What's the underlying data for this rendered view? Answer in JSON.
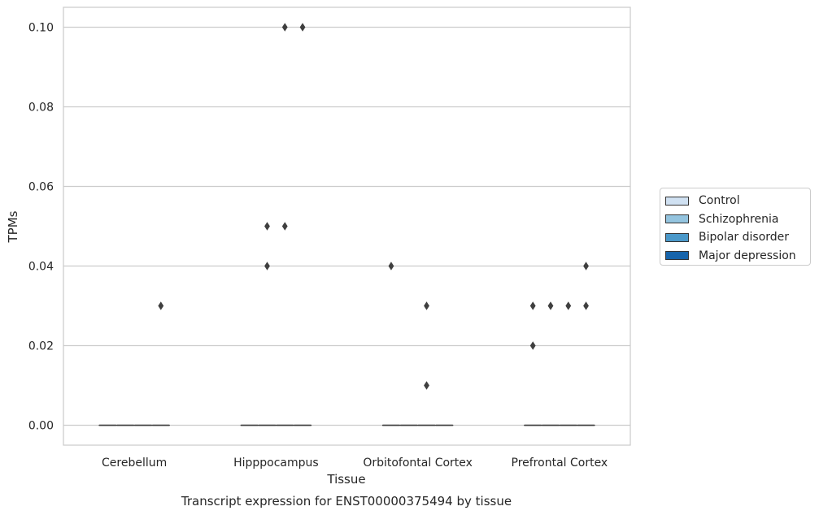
{
  "chart_data": {
    "type": "box",
    "xlabel": "Tissue",
    "ylabel": "TPMs",
    "caption": "Transcript expression for ENST00000375494 by tissue",
    "categories": [
      "Cerebellum",
      "Hipppocampus",
      "Orbitofontal Cortex",
      "Prefrontal Cortex"
    ],
    "ylim": [
      -0.005,
      0.105
    ],
    "yticks": [
      0.0,
      0.02,
      0.04,
      0.06,
      0.08,
      0.1
    ],
    "ytick_labels": [
      "0.00",
      "0.02",
      "0.04",
      "0.06",
      "0.08",
      "0.10"
    ],
    "grid": true,
    "legend_position": "right",
    "series": [
      {
        "name": "Control",
        "color": "#d0e1f2",
        "boxes": [
          {
            "q1": 0,
            "median": 0,
            "q3": 0
          },
          {
            "q1": 0,
            "median": 0,
            "q3": 0
          },
          {
            "q1": 0,
            "median": 0,
            "q3": 0
          },
          {
            "q1": 0,
            "median": 0,
            "q3": 0
          }
        ],
        "outliers": [
          [],
          [],
          [
            0.04
          ],
          [
            0.03,
            0.02
          ]
        ]
      },
      {
        "name": "Schizophrenia",
        "color": "#94c4df",
        "boxes": [
          {
            "q1": 0,
            "median": 0,
            "q3": 0
          },
          {
            "q1": 0,
            "median": 0,
            "q3": 0
          },
          {
            "q1": 0,
            "median": 0,
            "q3": 0
          },
          {
            "q1": 0,
            "median": 0,
            "q3": 0
          }
        ],
        "outliers": [
          [],
          [
            0.05,
            0.04
          ],
          [],
          [
            0.03
          ]
        ]
      },
      {
        "name": "Bipolar disorder",
        "color": "#4a98c9",
        "boxes": [
          {
            "q1": 0,
            "median": 0,
            "q3": 0
          },
          {
            "q1": 0,
            "median": 0,
            "q3": 0
          },
          {
            "q1": 0,
            "median": 0,
            "q3": 0
          },
          {
            "q1": 0,
            "median": 0,
            "q3": 0
          }
        ],
        "outliers": [
          [],
          [
            0.1,
            0.05
          ],
          [
            0.03,
            0.01
          ],
          [
            0.03
          ]
        ]
      },
      {
        "name": "Major depression",
        "color": "#1764ab",
        "boxes": [
          {
            "q1": 0,
            "median": 0,
            "q3": 0
          },
          {
            "q1": 0,
            "median": 0,
            "q3": 0
          },
          {
            "q1": 0,
            "median": 0,
            "q3": 0
          },
          {
            "q1": 0,
            "median": 0,
            "q3": 0
          }
        ],
        "outliers": [
          [
            0.03
          ],
          [
            0.1
          ],
          [],
          [
            0.04,
            0.03
          ]
        ]
      }
    ]
  }
}
